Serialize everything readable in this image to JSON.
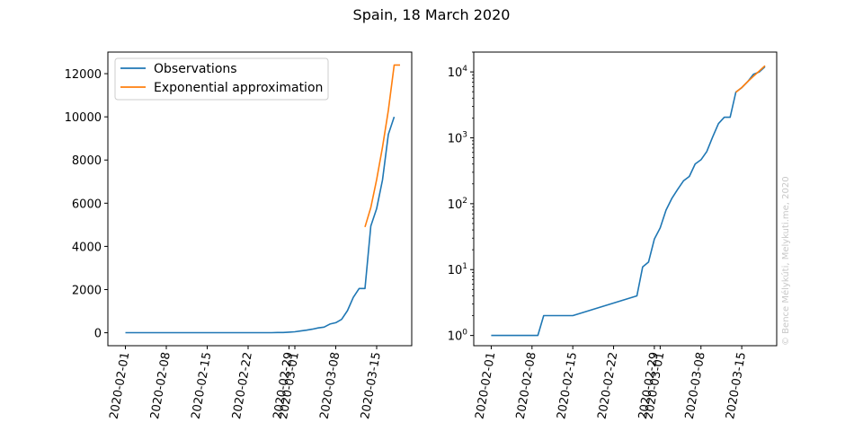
{
  "figure": {
    "title": "Spain, 18 March 2020",
    "copyright": "© Bence Mélykúti, Melykuti.me, 2020"
  },
  "colors": {
    "observations": "#1f77b4",
    "approximation": "#ff7f0e"
  },
  "chart_data": [
    {
      "type": "line",
      "yscale": "linear",
      "ylim": [
        -600,
        13000
      ],
      "yticks": [
        0,
        2000,
        4000,
        6000,
        8000,
        10000,
        12000
      ],
      "ytick_labels": [
        "0",
        "2000",
        "4000",
        "6000",
        "8000",
        "10000",
        "12000"
      ],
      "xlim": [
        "2020-01-29",
        "2020-03-21"
      ],
      "xticks": [
        "2020-02-01",
        "2020-02-08",
        "2020-02-15",
        "2020-02-22",
        "2020-02-29",
        "2020-03-01",
        "2020-03-08",
        "2020-03-15"
      ],
      "xtick_labels": [
        "2020-02-01",
        "2020-02-08",
        "2020-02-15",
        "2020-02-22",
        "2020-02-29",
        "2020-03-01",
        "2020-03-08",
        "2020-03-15"
      ],
      "legend": {
        "location": "upper-left",
        "entries": [
          "Observations",
          "Exponential approximation"
        ]
      },
      "grid": false,
      "series": [
        {
          "name": "Observations",
          "x": [
            "2020-02-01",
            "2020-02-09",
            "2020-02-14",
            "2020-02-26",
            "2020-02-27",
            "2020-02-28",
            "2020-02-29",
            "2020-03-01",
            "2020-03-02",
            "2020-03-03",
            "2020-03-04",
            "2020-03-05",
            "2020-03-06",
            "2020-03-07",
            "2020-03-08",
            "2020-03-09",
            "2020-03-10",
            "2020-03-11",
            "2020-03-12",
            "2020-03-13",
            "2020-03-14",
            "2020-03-15",
            "2020-03-16",
            "2020-03-17",
            "2020-03-18"
          ],
          "y": [
            1,
            2,
            2,
            4,
            11,
            13,
            29,
            43,
            80,
            120,
            165,
            222,
            259,
            401,
            465,
            618,
            1024,
            1639,
            2049,
            2050,
            4946,
            5753,
            7076,
            9191,
            10000
          ]
        },
        {
          "name": "Exponential approximation",
          "x": [
            "2020-03-13",
            "2020-03-14",
            "2020-03-15",
            "2020-03-16",
            "2020-03-17",
            "2020-03-18",
            "2020-03-19"
          ],
          "y": [
            4900,
            5800,
            7100,
            8600,
            10300,
            12400,
            12400
          ]
        }
      ]
    },
    {
      "type": "line",
      "yscale": "log",
      "ylim": [
        0.7,
        20000
      ],
      "yticks": [
        1,
        10,
        100,
        1000,
        10000
      ],
      "ytick_exponents": [
        "0",
        "1",
        "2",
        "3",
        "4"
      ],
      "xlim": [
        "2020-01-29",
        "2020-03-21"
      ],
      "xticks": [
        "2020-02-01",
        "2020-02-08",
        "2020-02-15",
        "2020-02-22",
        "2020-02-29",
        "2020-03-01",
        "2020-03-08",
        "2020-03-15"
      ],
      "xtick_labels": [
        "2020-02-01",
        "2020-02-08",
        "2020-02-15",
        "2020-02-22",
        "2020-02-29",
        "2020-03-01",
        "2020-03-08",
        "2020-03-15"
      ],
      "grid": false,
      "series": [
        {
          "name": "Observations",
          "x": [
            "2020-02-01",
            "2020-02-09",
            "2020-02-10",
            "2020-02-15",
            "2020-02-26",
            "2020-02-27",
            "2020-02-28",
            "2020-02-29",
            "2020-03-01",
            "2020-03-02",
            "2020-03-03",
            "2020-03-04",
            "2020-03-05",
            "2020-03-06",
            "2020-03-07",
            "2020-03-08",
            "2020-03-09",
            "2020-03-10",
            "2020-03-11",
            "2020-03-12",
            "2020-03-13",
            "2020-03-14",
            "2020-03-15",
            "2020-03-16",
            "2020-03-17",
            "2020-03-18",
            "2020-03-19"
          ],
          "y": [
            1,
            1,
            2,
            2,
            4,
            11,
            13,
            29,
            43,
            80,
            120,
            165,
            222,
            259,
            401,
            465,
            618,
            1024,
            1639,
            2049,
            2050,
            4946,
            5753,
            7076,
            9191,
            10000,
            12000
          ]
        },
        {
          "name": "Exponential approximation",
          "x": [
            "2020-03-14",
            "2020-03-15",
            "2020-03-16",
            "2020-03-17",
            "2020-03-18",
            "2020-03-19"
          ],
          "y": [
            4900,
            5800,
            7100,
            8600,
            10300,
            12400
          ]
        }
      ]
    }
  ]
}
